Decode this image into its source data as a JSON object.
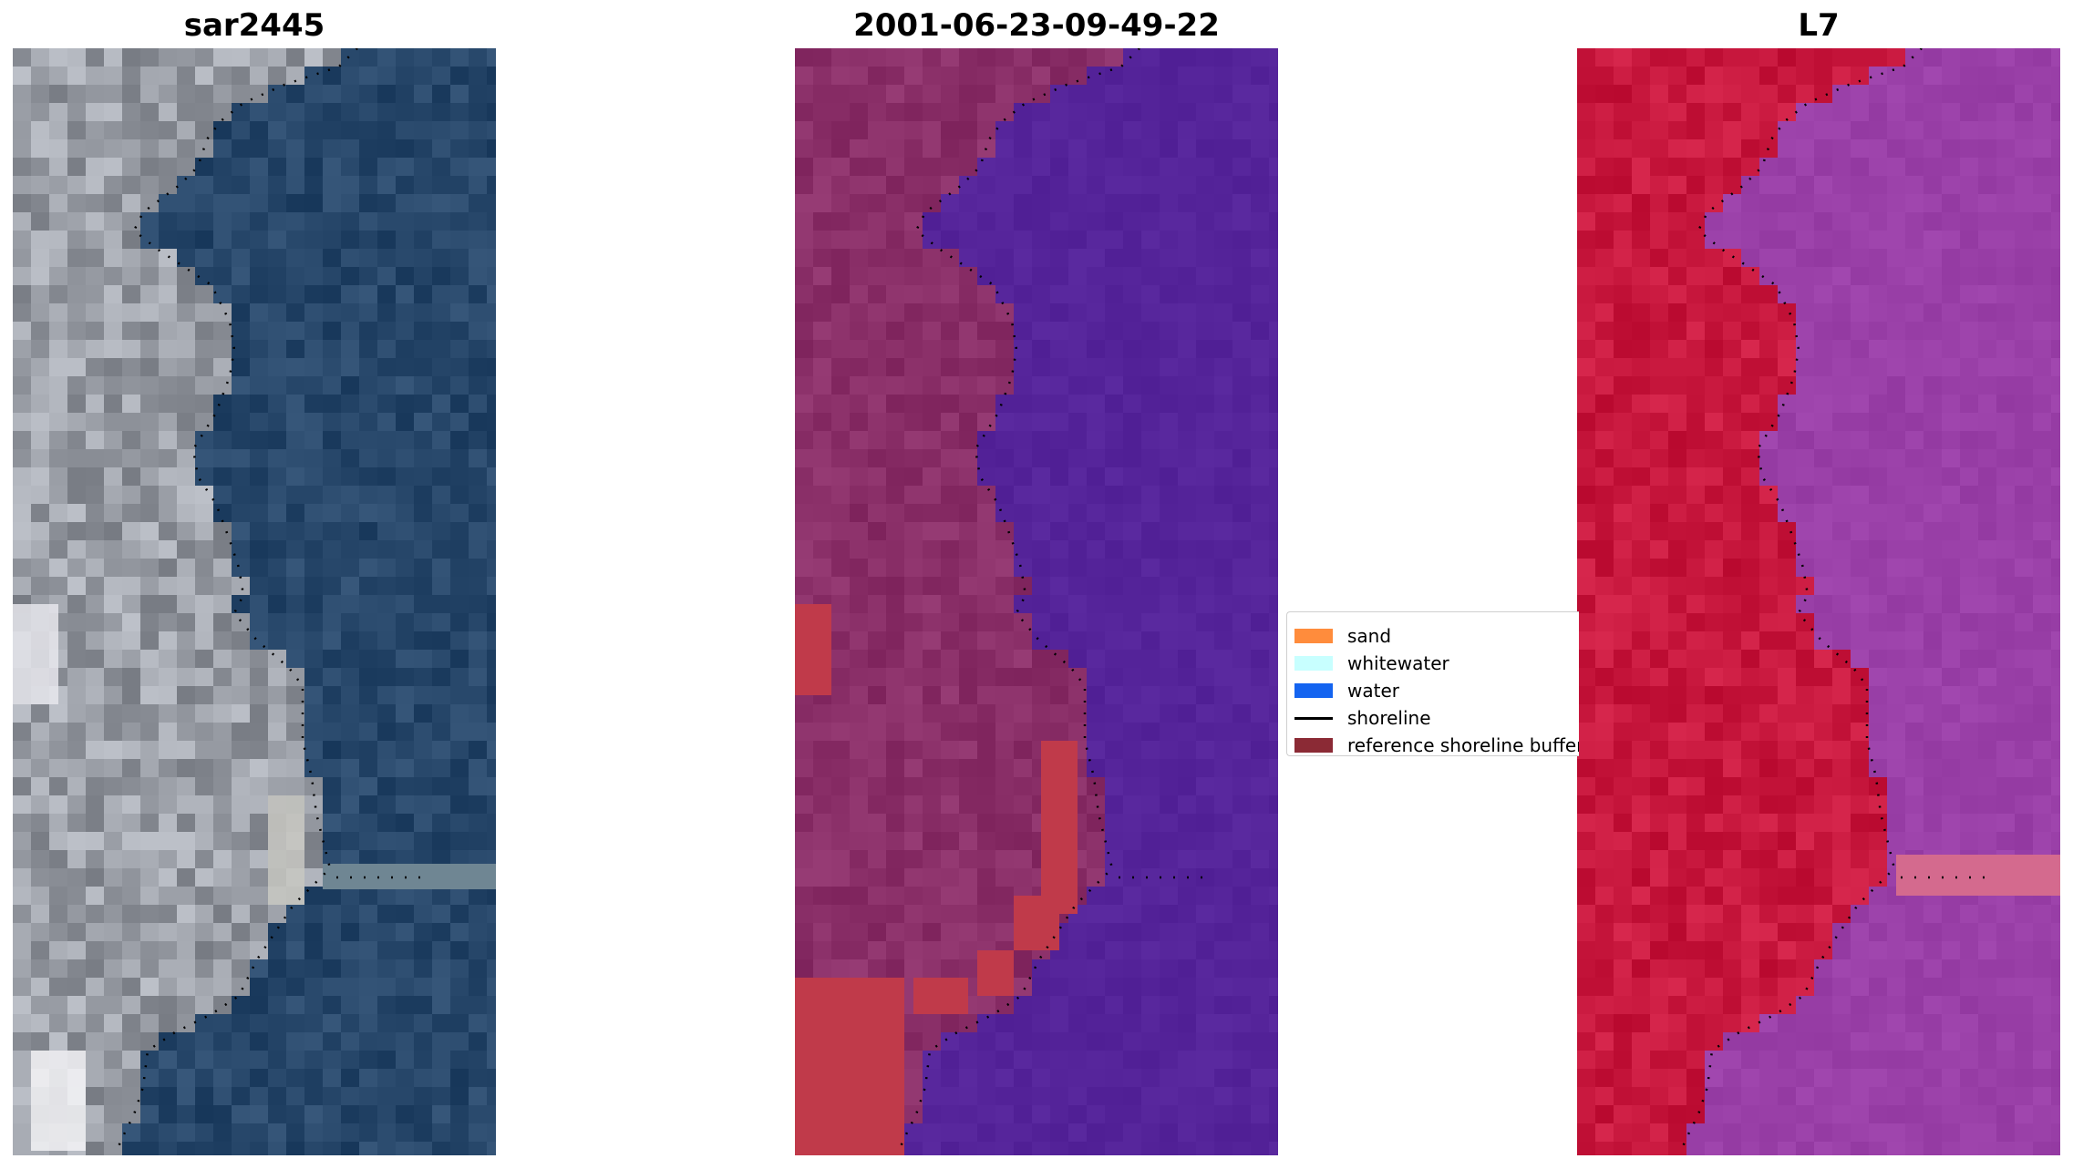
{
  "panels": [
    {
      "title": "sar2445",
      "kind": "rgb"
    },
    {
      "title": "2001-06-23-09-49-22",
      "kind": "classified"
    },
    {
      "title": "L7",
      "kind": "mndwi"
    }
  ],
  "legend": {
    "items": [
      {
        "label": "sand",
        "color": "#ff8c3c",
        "type": "patch"
      },
      {
        "label": "whitewater",
        "color": "#c8ffff",
        "type": "patch"
      },
      {
        "label": "water",
        "color": "#1464f0",
        "type": "patch"
      },
      {
        "label": "shoreline",
        "color": "#000000",
        "type": "line"
      },
      {
        "label": "reference shoreline buffer",
        "color": "#8b2a35",
        "type": "patch"
      }
    ]
  },
  "colors": {
    "rgb_land": "#9a9ea6",
    "rgb_water": "#27476a",
    "class_land": "#8a2f68",
    "class_water": "#55249a",
    "class_sand_buffer": "#c03a4a",
    "mndwi_land": "#c8183e",
    "mndwi_water": "#9a40a8"
  }
}
